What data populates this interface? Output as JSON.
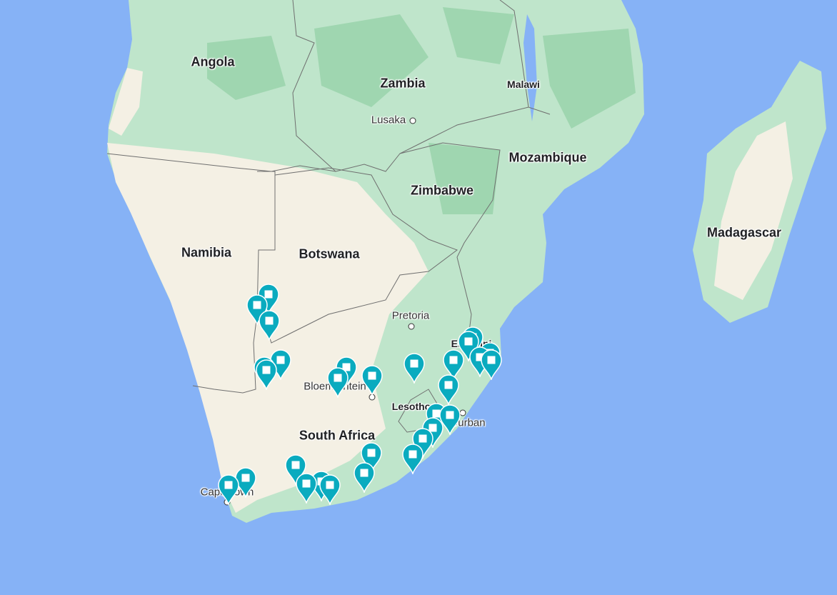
{
  "map": {
    "colors": {
      "water": "#86b2f6",
      "forest": "#b9e3c5",
      "forest_dark": "#9fd6b0",
      "desert": "#f4f0e4",
      "border": "#6f6f6f",
      "marker": "#0aabbf"
    },
    "countries": [
      "Angola",
      "Zambia",
      "Malawi",
      "Mozambique",
      "Zimbabwe",
      "Madagascar",
      "Namibia",
      "Botswana",
      "Eswatini",
      "Lesotho",
      "South Africa"
    ],
    "cities": [
      "Lusaka",
      "Pretoria",
      "Bloemfontein",
      "Durban",
      "Cape Town"
    ]
  },
  "markers": {
    "icon": "map-pin-square-icon",
    "color": "#0aabbf"
  }
}
